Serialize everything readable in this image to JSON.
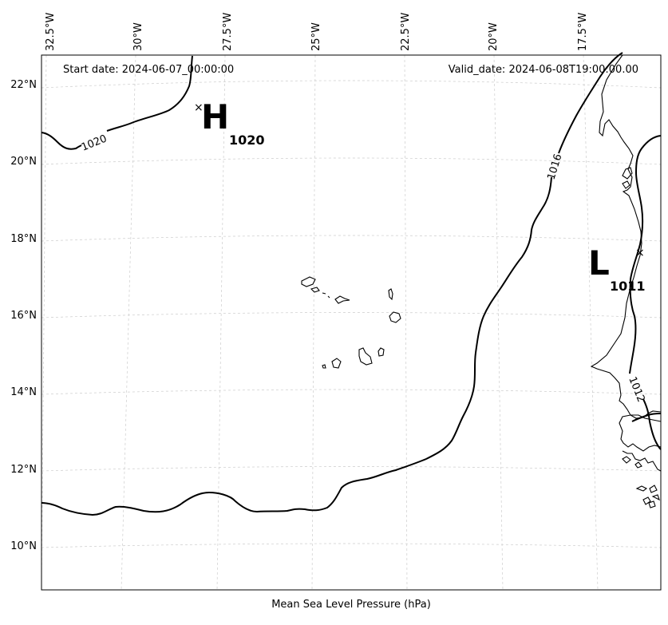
{
  "map": {
    "start_date": "Start date: 2024-06-07_00:00:00",
    "valid_date": "Valid_date: 2024-06-08T19:00:00.00",
    "xlabel": "Mean Sea Level Pressure (hPa)",
    "lon_ticks": [
      "32.5°W",
      "30°W",
      "27.5°W",
      "25°W",
      "22.5°W",
      "20°W",
      "17.5°W"
    ],
    "lat_ticks": [
      "22°N",
      "20°N",
      "18°N",
      "16°N",
      "14°N",
      "12°N",
      "10°N"
    ],
    "isobars": [
      {
        "value": 1020,
        "label": "1020"
      },
      {
        "value": 1016,
        "label": "1016"
      },
      {
        "value": 1012,
        "label": "1012"
      }
    ],
    "centers": [
      {
        "type": "high",
        "letter": "H",
        "value": "1020",
        "mark": "×"
      },
      {
        "type": "low",
        "letter": "L",
        "value": "1011",
        "mark": "×"
      }
    ]
  }
}
